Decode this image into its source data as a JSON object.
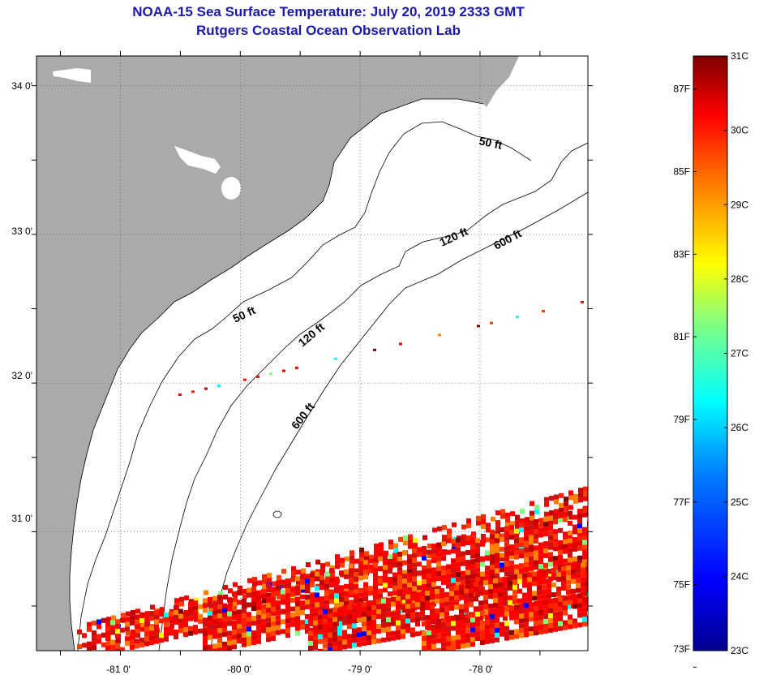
{
  "title": {
    "line1": "NOAA-15 Sea Surface Temperature:  July 20, 2019 2333 GMT",
    "line2": "Rutgers Coastal Ocean Observation Lab"
  },
  "map": {
    "lat_labels": [
      "34 0'",
      "33 0'",
      "32 0'",
      "31 0'"
    ],
    "lon_labels": [
      "-81 0'",
      "-80 0'",
      "-79 0'",
      "-78 0'"
    ],
    "lat_values": [
      34,
      33,
      32,
      31
    ],
    "lon_values": [
      -81,
      -80,
      -79,
      -78
    ],
    "lat_range": [
      30.2,
      34.2
    ],
    "lon_range": [
      -81.7,
      -77.1
    ],
    "isobath_labels": {
      "nearshore_north": "50 ft",
      "nearshore_south": "50 ft",
      "mid_north": "120 ft",
      "mid_south": "120 ft",
      "outer_north": "600 ft",
      "outer_south": "600 ft"
    },
    "colors": {
      "land": "#aaaaaa",
      "coastline": "#000000",
      "gridline": "#666666"
    }
  },
  "colorbar": {
    "celsius_labels": [
      "31C",
      "30C",
      "29C",
      "28C",
      "27C",
      "26C",
      "25C",
      "24C",
      "23C"
    ],
    "celsius_values": [
      31,
      30,
      29,
      28,
      27,
      26,
      25,
      24,
      23
    ],
    "fahrenheit_labels": [
      "87F",
      "85F",
      "83F",
      "81F",
      "79F",
      "77F",
      "75F",
      "73F"
    ],
    "fahrenheit_values": [
      87,
      85,
      83,
      81,
      79,
      77,
      75,
      73
    ],
    "range_c": [
      23,
      31
    ],
    "colors": [
      "#00008f",
      "#0000ff",
      "#0080ff",
      "#00ffff",
      "#80ff80",
      "#ffff00",
      "#ff8000",
      "#ff0000",
      "#800000"
    ]
  }
}
